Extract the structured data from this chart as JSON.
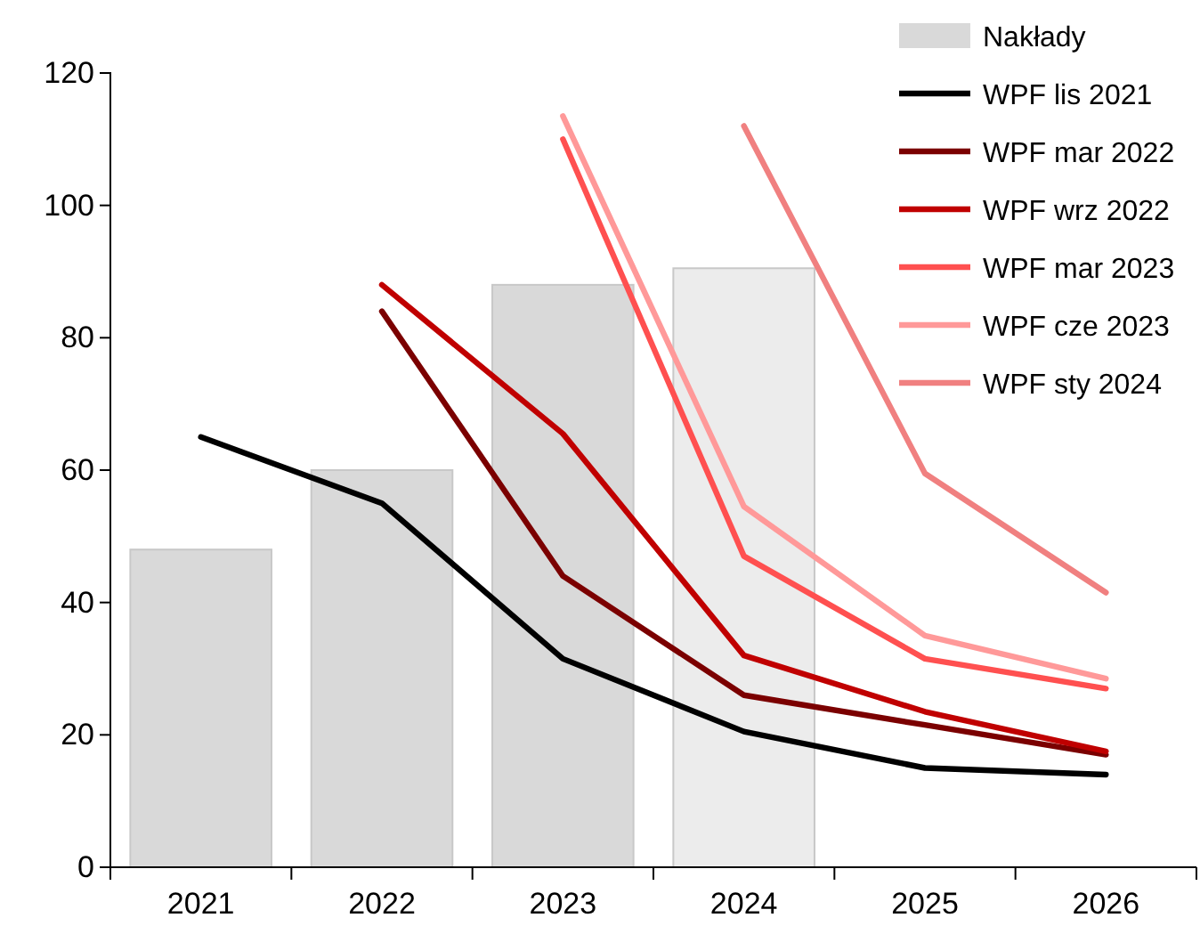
{
  "chart_data": {
    "type": "bar",
    "categories": [
      "2021",
      "2022",
      "2023",
      "2024",
      "2025",
      "2026"
    ],
    "series": [
      {
        "name": "Nakłady",
        "colors": [
          "#d9d9d9",
          "#d9d9d9",
          "#d9d9d9",
          "#ececec",
          null,
          null
        ],
        "values": [
          48,
          60,
          88,
          90.5,
          null,
          null
        ]
      },
      {
        "name": "WPF lis 2021",
        "type": "line",
        "color": "#000000",
        "values": [
          65,
          55,
          31.5,
          20.5,
          15,
          14
        ]
      },
      {
        "name": "WPF mar 2022",
        "type": "line",
        "color": "#7b0000",
        "values": [
          null,
          84,
          44,
          26,
          21.5,
          17
        ]
      },
      {
        "name": "WPF wrz 2022",
        "type": "line",
        "color": "#c00000",
        "values": [
          null,
          88,
          65.5,
          32,
          23.5,
          17.5
        ]
      },
      {
        "name": "WPF mar 2023",
        "type": "line",
        "color": "#ff5050",
        "values": [
          null,
          null,
          110,
          47,
          31.5,
          27
        ]
      },
      {
        "name": "WPF cze 2023",
        "type": "line",
        "color": "#ff9999",
        "values": [
          null,
          null,
          113.5,
          54.5,
          35,
          28.5
        ]
      },
      {
        "name": "WPF sty 2024",
        "type": "line",
        "color": "#f08080",
        "values": [
          null,
          null,
          null,
          112,
          59.5,
          41.5
        ]
      }
    ],
    "ylim": [
      0,
      120
    ],
    "yticks": [
      0,
      20,
      40,
      60,
      80,
      100,
      120
    ],
    "grid": false,
    "legend": "top right",
    "marker": "none",
    "line_style": "solid"
  }
}
